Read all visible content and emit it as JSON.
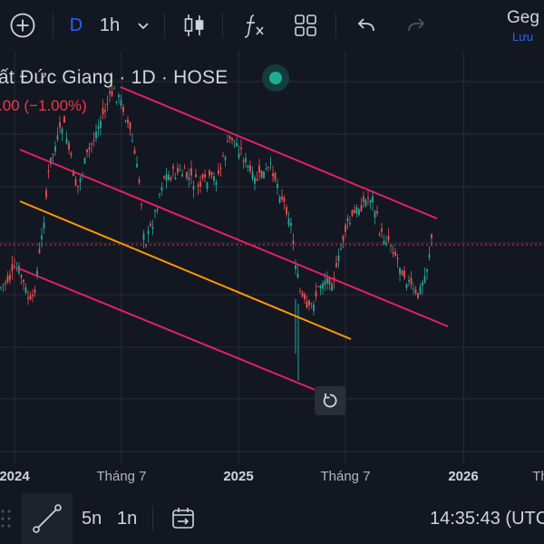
{
  "toolbar": {
    "interval_letter": "D",
    "interval_value": "1h",
    "symbol_short": "Geg",
    "save_label": "Lưu"
  },
  "chart": {
    "title": "ất Đức Giang · 1D · HOSE",
    "change": ".00 (−1.00%)",
    "x_labels": [
      "2024",
      "Tháng 7",
      "2025",
      "Tháng 7",
      "2026",
      "Th"
    ]
  },
  "bottom": {
    "range_5n": "5n",
    "range_1n": "1n",
    "time": "14:35:43 (UTC"
  },
  "colors": {
    "up": "#26a69a",
    "down": "#ef5350",
    "channel": "#e91e63",
    "midline": "#ff9800",
    "accent_blue": "#2962ff",
    "price_line": "#f23645"
  }
}
